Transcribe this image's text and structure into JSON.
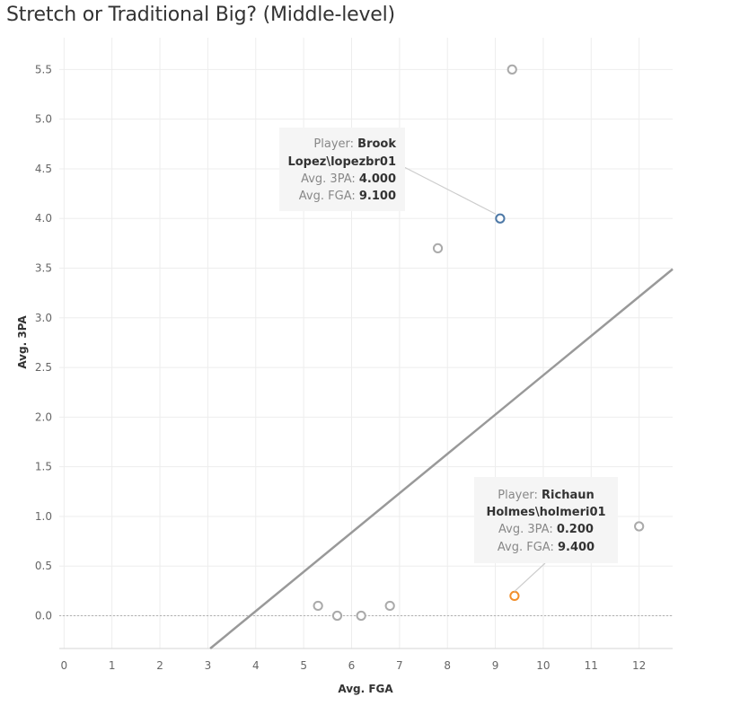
{
  "title": "Stretch or Traditional Big? (Middle-level)",
  "chart_data": {
    "type": "scatter",
    "title": "Stretch or Traditional Big? (Middle-level)",
    "xlabel": "Avg. FGA",
    "ylabel": "Avg. 3PA",
    "xlim": [
      -0.1,
      12.7
    ],
    "ylim": [
      -0.33,
      5.82
    ],
    "xticks": [
      0,
      1,
      2,
      3,
      4,
      5,
      6,
      7,
      8,
      9,
      10,
      11,
      12
    ],
    "yticks": [
      0.0,
      0.5,
      1.0,
      1.5,
      2.0,
      2.5,
      3.0,
      3.5,
      4.0,
      4.5,
      5.0,
      5.5
    ],
    "grid": true,
    "points": [
      {
        "x": 9.35,
        "y": 5.5,
        "color": "#aaaaaa"
      },
      {
        "x": 9.1,
        "y": 4.0,
        "color": "#4e79a7",
        "highlight": true
      },
      {
        "x": 7.8,
        "y": 3.7,
        "color": "#aaaaaa"
      },
      {
        "x": 12.0,
        "y": 0.9,
        "color": "#aaaaaa"
      },
      {
        "x": 9.4,
        "y": 0.2,
        "color": "#f28e2b",
        "highlight": true
      },
      {
        "x": 5.3,
        "y": 0.1,
        "color": "#aaaaaa"
      },
      {
        "x": 5.7,
        "y": 0.0,
        "color": "#aaaaaa"
      },
      {
        "x": 6.2,
        "y": 0.0,
        "color": "#aaaaaa"
      },
      {
        "x": 6.8,
        "y": 0.1,
        "color": "#aaaaaa"
      }
    ],
    "trend_line": {
      "x0": 3.05,
      "y0": -0.33,
      "x1": 12.7,
      "y1": 3.49,
      "color": "#999999"
    },
    "zero_line": {
      "y": 0.0,
      "style": "dotted"
    },
    "tooltips": [
      {
        "player_label": "Player:",
        "player_value_line1": "Brook",
        "player_value_line2": "Lopez\\lopezbr01",
        "tpa_label": "Avg. 3PA:",
        "tpa_value": "4.000",
        "fga_label": "Avg. FGA:",
        "fga_value": "9.100",
        "point": {
          "x": 9.1,
          "y": 4.0
        }
      },
      {
        "player_label": "Player:",
        "player_value_line1": "Richaun",
        "player_value_line2": "Holmes\\holmeri01",
        "tpa_label": "Avg. 3PA:",
        "tpa_value": "0.200",
        "fga_label": "Avg. FGA:",
        "fga_value": "9.400",
        "point": {
          "x": 9.4,
          "y": 0.2
        }
      }
    ]
  },
  "colors": {
    "grid": "#ededed",
    "axis_text": "#666666",
    "default_point": "#aaaaaa",
    "highlight_blue": "#4e79a7",
    "highlight_orange": "#f28e2b",
    "tooltip_bg": "#f5f5f5"
  }
}
